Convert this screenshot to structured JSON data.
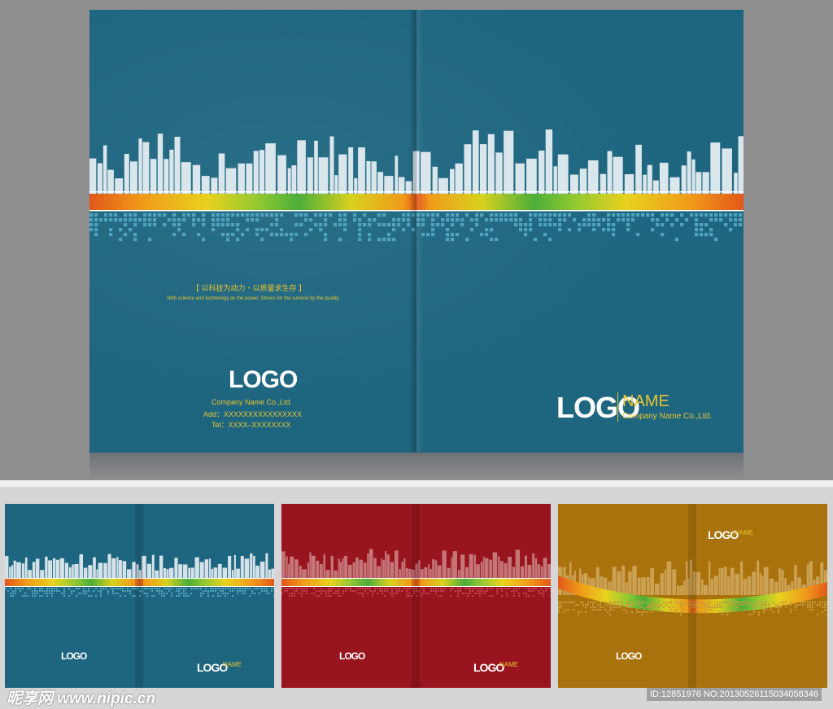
{
  "main_cover": {
    "background": "#1e6680",
    "slogan_cn": "【 以科技为动力・以质量求生存 】",
    "slogan_en": "With science and technology as the power, Strives for the survival by the quality",
    "back_logo": "LOGO",
    "company": "Company Name Co.,Ltd.",
    "address": "Add：XXXXXXXXXXXXXXXX",
    "tel": "Tel：XXXX–XXXXXXXX",
    "front_logo": "LOGO",
    "front_name": "NAME",
    "front_company": "Company Name Co.,Ltd."
  },
  "variants": [
    {
      "color_name": "blue",
      "background": "#1e6680",
      "back_logo": "LOGO",
      "front_logo": "LOGO",
      "front_name": "NAME"
    },
    {
      "color_name": "red",
      "background": "#98141e",
      "back_logo": "LOGO",
      "front_logo": "LOGO",
      "front_name": "NAME"
    },
    {
      "color_name": "gold",
      "background": "#a9720c",
      "back_logo": "LOGO",
      "front_logo": "LOGO",
      "front_name": "NAME"
    }
  ],
  "watermark": {
    "site": "昵享网 www.nipic.cn",
    "id_text": "ID:12851976 NO:20130526115034058346"
  },
  "colors": {
    "accent_yellow": "#e8c431",
    "stripe_colors": [
      "#e2581a",
      "#f09a1a",
      "#e8d21e",
      "#8fc832",
      "#4cae3a",
      "#d8d21e",
      "#f09a1a",
      "#e2581a"
    ]
  }
}
